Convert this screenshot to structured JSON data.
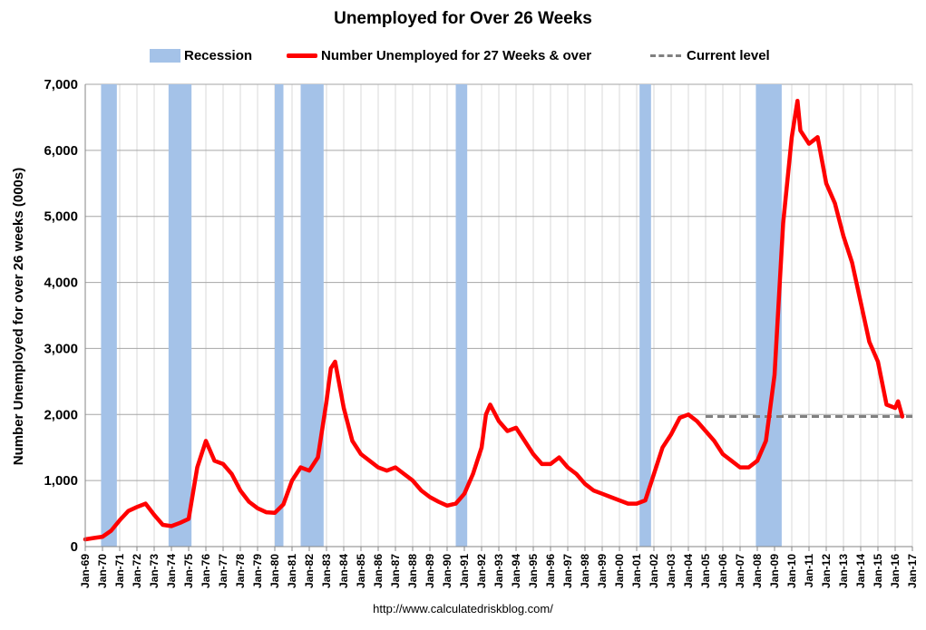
{
  "colors": {
    "recession": "#a4c2e8",
    "series": "#ff0000",
    "current": "#808080",
    "grid_major": "#a6a6a6",
    "grid_minor": "#d9d9d9"
  },
  "source_text": "http://www.calculatedriskblog.com/",
  "chart_data": {
    "type": "line",
    "title": "Unemployed for Over 26 Weeks",
    "ylabel": "Number Unemployed for over 26 weeks (000s)",
    "xlabel": "",
    "ylim": [
      0,
      7000
    ],
    "yticks": [
      0,
      1000,
      2000,
      3000,
      4000,
      5000,
      6000,
      7000
    ],
    "ytick_labels": [
      "0",
      "1,000",
      "2,000",
      "3,000",
      "4,000",
      "5,000",
      "6,000",
      "7,000"
    ],
    "xlim": [
      1969.0,
      2017.0
    ],
    "xtick_labels": [
      "Jan-69",
      "Jan-70",
      "Jan-71",
      "Jan-72",
      "Jan-73",
      "Jan-74",
      "Jan-75",
      "Jan-76",
      "Jan-77",
      "Jan-78",
      "Jan-79",
      "Jan-80",
      "Jan-81",
      "Jan-82",
      "Jan-83",
      "Jan-84",
      "Jan-85",
      "Jan-86",
      "Jan-87",
      "Jan-88",
      "Jan-89",
      "Jan-90",
      "Jan-91",
      "Jan-92",
      "Jan-93",
      "Jan-94",
      "Jan-95",
      "Jan-96",
      "Jan-97",
      "Jan-98",
      "Jan-99",
      "Jan-00",
      "Jan-01",
      "Jan-02",
      "Jan-03",
      "Jan-04",
      "Jan-05",
      "Jan-06",
      "Jan-07",
      "Jan-08",
      "Jan-09",
      "Jan-10",
      "Jan-11",
      "Jan-12",
      "Jan-13",
      "Jan-14",
      "Jan-15",
      "Jan-16",
      "Jan-17"
    ],
    "grid": true,
    "legend_position": "top",
    "legend": [
      {
        "label": "Recession",
        "kind": "band"
      },
      {
        "label": "Number Unemployed for 27 Weeks & over",
        "kind": "line"
      },
      {
        "label": "Current level",
        "kind": "dashed"
      }
    ],
    "recessions": [
      {
        "start": "Dec-1969",
        "end": "Nov-1970"
      },
      {
        "start": "Nov-1973",
        "end": "Mar-1975"
      },
      {
        "start": "Jan-1980",
        "end": "Jul-1980"
      },
      {
        "start": "Jul-1981",
        "end": "Nov-1982"
      },
      {
        "start": "Jul-1990",
        "end": "Mar-1991"
      },
      {
        "start": "Mar-2001",
        "end": "Nov-2001"
      },
      {
        "start": "Dec-2007",
        "end": "Jun-2009"
      }
    ],
    "current_level": {
      "value": 1970,
      "from": "Jan-2005"
    },
    "series": [
      {
        "name": "Number Unemployed for 27 Weeks & over",
        "points": [
          [
            "Jan-1969",
            110
          ],
          [
            "Jul-1969",
            130
          ],
          [
            "Jan-1970",
            150
          ],
          [
            "Jul-1970",
            240
          ],
          [
            "Jan-1971",
            400
          ],
          [
            "Jul-1971",
            540
          ],
          [
            "Jan-1972",
            600
          ],
          [
            "Jul-1972",
            650
          ],
          [
            "Jan-1973",
            480
          ],
          [
            "Jul-1973",
            330
          ],
          [
            "Jan-1974",
            310
          ],
          [
            "Jul-1974",
            360
          ],
          [
            "Jan-1975",
            420
          ],
          [
            "Jul-1975",
            1200
          ],
          [
            "Jan-1976",
            1600
          ],
          [
            "Jul-1976",
            1300
          ],
          [
            "Jan-1977",
            1250
          ],
          [
            "Jul-1977",
            1100
          ],
          [
            "Jan-1978",
            850
          ],
          [
            "Jul-1978",
            680
          ],
          [
            "Jan-1979",
            580
          ],
          [
            "Jul-1979",
            520
          ],
          [
            "Jan-1980",
            510
          ],
          [
            "Jul-1980",
            640
          ],
          [
            "Jan-1981",
            1000
          ],
          [
            "Jul-1981",
            1200
          ],
          [
            "Jan-1982",
            1150
          ],
          [
            "Jul-1982",
            1350
          ],
          [
            "Jan-1983",
            2200
          ],
          [
            "Apr-1983",
            2700
          ],
          [
            "Jul-1983",
            2800
          ],
          [
            "Jan-1984",
            2100
          ],
          [
            "Jul-1984",
            1600
          ],
          [
            "Jan-1985",
            1400
          ],
          [
            "Jul-1985",
            1300
          ],
          [
            "Jan-1986",
            1200
          ],
          [
            "Jul-1986",
            1150
          ],
          [
            "Jan-1987",
            1200
          ],
          [
            "Jul-1987",
            1100
          ],
          [
            "Jan-1988",
            1000
          ],
          [
            "Jul-1988",
            850
          ],
          [
            "Jan-1989",
            750
          ],
          [
            "Jul-1989",
            680
          ],
          [
            "Jan-1990",
            620
          ],
          [
            "Jul-1990",
            650
          ],
          [
            "Jan-1991",
            800
          ],
          [
            "Jul-1991",
            1100
          ],
          [
            "Jan-1992",
            1500
          ],
          [
            "Apr-1992",
            2000
          ],
          [
            "Jul-1992",
            2150
          ],
          [
            "Jan-1993",
            1900
          ],
          [
            "Jul-1993",
            1750
          ],
          [
            "Jan-1994",
            1800
          ],
          [
            "Jul-1994",
            1600
          ],
          [
            "Jan-1995",
            1400
          ],
          [
            "Jul-1995",
            1250
          ],
          [
            "Jan-1996",
            1250
          ],
          [
            "Jul-1996",
            1350
          ],
          [
            "Jan-1997",
            1200
          ],
          [
            "Jul-1997",
            1100
          ],
          [
            "Jan-1998",
            950
          ],
          [
            "Jul-1998",
            850
          ],
          [
            "Jan-1999",
            800
          ],
          [
            "Jul-1999",
            750
          ],
          [
            "Jan-2000",
            700
          ],
          [
            "Jul-2000",
            650
          ],
          [
            "Jan-2001",
            650
          ],
          [
            "Jul-2001",
            700
          ],
          [
            "Jan-2002",
            1100
          ],
          [
            "Jul-2002",
            1500
          ],
          [
            "Jan-2003",
            1700
          ],
          [
            "Jul-2003",
            1950
          ],
          [
            "Jan-2004",
            2000
          ],
          [
            "Jul-2004",
            1900
          ],
          [
            "Jan-2005",
            1750
          ],
          [
            "Jul-2005",
            1600
          ],
          [
            "Jan-2006",
            1400
          ],
          [
            "Jul-2006",
            1300
          ],
          [
            "Jan-2007",
            1200
          ],
          [
            "Jul-2007",
            1200
          ],
          [
            "Jan-2008",
            1300
          ],
          [
            "Jul-2008",
            1600
          ],
          [
            "Jan-2009",
            2600
          ],
          [
            "Jul-2009",
            4900
          ],
          [
            "Jan-2010",
            6200
          ],
          [
            "May-2010",
            6750
          ],
          [
            "Jul-2010",
            6300
          ],
          [
            "Jan-2011",
            6100
          ],
          [
            "Jul-2011",
            6200
          ],
          [
            "Jan-2012",
            5500
          ],
          [
            "Jul-2012",
            5200
          ],
          [
            "Jan-2013",
            4700
          ],
          [
            "Jul-2013",
            4300
          ],
          [
            "Jan-2014",
            3700
          ],
          [
            "Jul-2014",
            3100
          ],
          [
            "Jan-2015",
            2800
          ],
          [
            "Jul-2015",
            2150
          ],
          [
            "Jan-2016",
            2100
          ],
          [
            "Mar-2016",
            2200
          ],
          [
            "Jun-2016",
            1970
          ]
        ]
      }
    ]
  }
}
